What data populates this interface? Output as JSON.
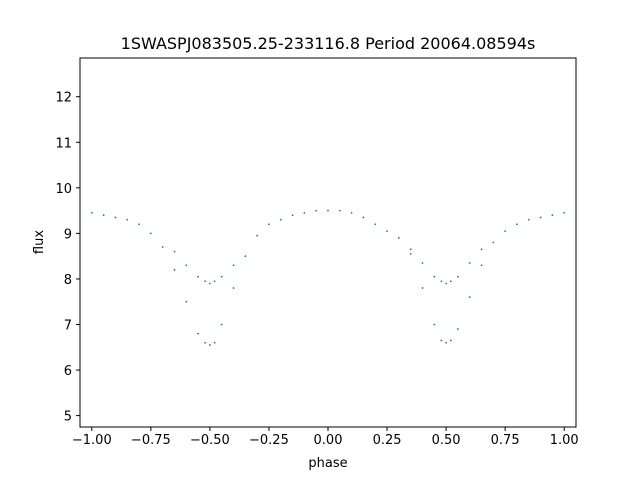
{
  "chart_data": {
    "type": "scatter",
    "title": "1SWASPJ083505.25-233116.8 Period 20064.08594s",
    "xlabel": "phase",
    "ylabel": "flux",
    "xlim": [
      -1.05,
      1.05
    ],
    "ylim": [
      4.75,
      12.85
    ],
    "xticks": [
      -1.0,
      -0.75,
      -0.5,
      -0.25,
      0.0,
      0.25,
      0.5,
      0.75,
      1.0
    ],
    "xtick_labels": [
      "−1.00",
      "−0.75",
      "−0.50",
      "−0.25",
      "0.00",
      "0.25",
      "0.50",
      "0.75",
      "1.00"
    ],
    "yticks": [
      5,
      6,
      7,
      8,
      9,
      10,
      11,
      12
    ],
    "ytick_labels": [
      "5",
      "6",
      "7",
      "8",
      "9",
      "10",
      "11",
      "12"
    ],
    "grid": false,
    "marker_color": "#1f77b4",
    "series": [
      {
        "x": [
          -1.0,
          -0.95,
          -0.9,
          -0.85,
          -0.8,
          -0.75,
          -0.7,
          -0.65,
          -0.6,
          -0.55,
          -0.52,
          -0.5,
          -0.48,
          -0.45,
          -0.4,
          -0.35,
          -0.3,
          -0.25,
          -0.2,
          -0.15,
          -0.1,
          -0.05,
          0.0,
          0.05,
          0.1,
          0.15,
          0.2,
          0.25,
          0.3,
          0.35,
          0.4,
          0.45,
          0.48,
          0.5,
          0.52,
          0.55,
          0.6,
          0.65,
          0.7,
          0.75,
          0.8,
          0.85,
          0.9,
          0.95,
          1.0
        ],
        "y": [
          9.45,
          9.4,
          9.35,
          9.3,
          9.2,
          9.0,
          8.7,
          8.2,
          7.5,
          6.8,
          6.6,
          6.55,
          6.6,
          7.0,
          7.8,
          8.5,
          8.95,
          9.2,
          9.3,
          9.4,
          9.45,
          9.5,
          9.5,
          9.5,
          9.45,
          9.35,
          9.2,
          9.05,
          8.9,
          8.55,
          7.8,
          7.0,
          6.65,
          6.6,
          6.65,
          6.9,
          7.6,
          8.3,
          8.8,
          9.05,
          9.2,
          9.3,
          9.35,
          9.4,
          9.45
        ]
      },
      {
        "x": [
          -0.65,
          -0.6,
          -0.55,
          -0.52,
          -0.5,
          -0.48,
          -0.45,
          -0.4,
          0.35,
          0.4,
          0.45,
          0.48,
          0.5,
          0.52,
          0.55,
          0.6,
          0.65
        ],
        "y": [
          8.6,
          8.3,
          8.05,
          7.95,
          7.9,
          7.95,
          8.05,
          8.3,
          8.65,
          8.35,
          8.05,
          7.95,
          7.9,
          7.95,
          8.05,
          8.35,
          8.65
        ]
      }
    ]
  }
}
